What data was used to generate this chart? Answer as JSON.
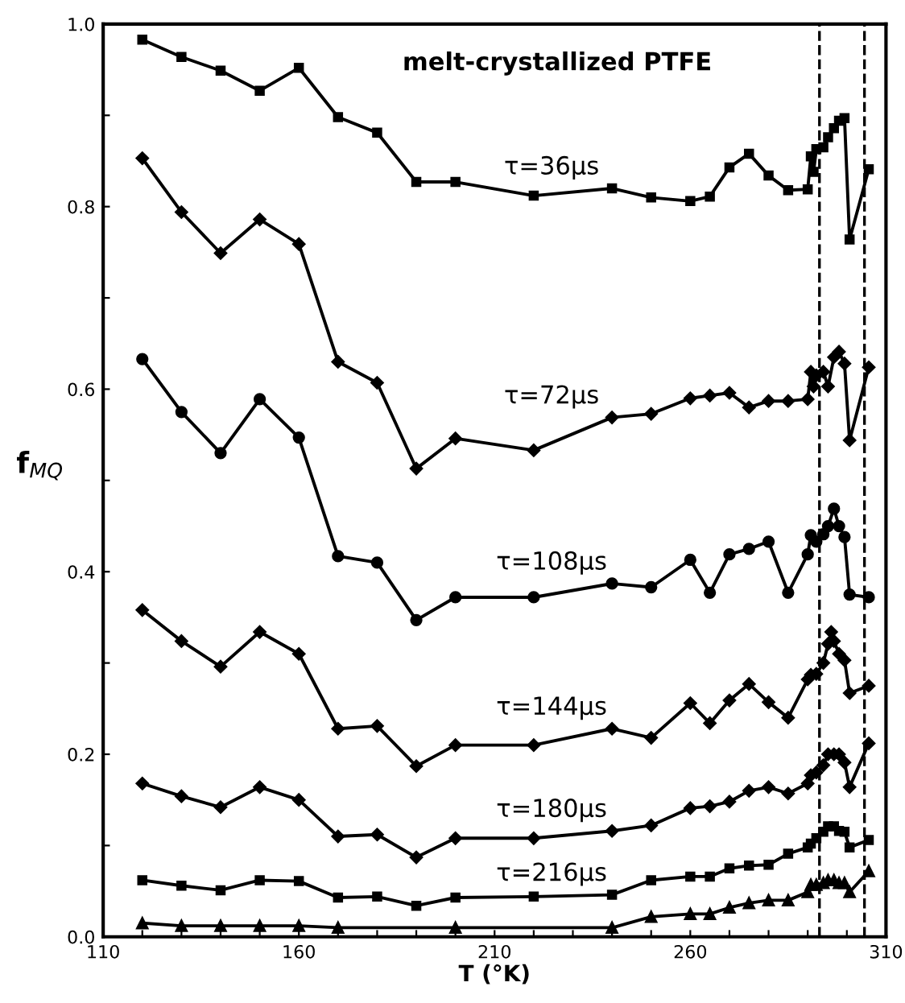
{
  "chart_data": {
    "type": "line",
    "title": "melt-crystallized PTFE",
    "xlabel": "T (°K)",
    "ylabel": "f$_{MQ}$",
    "xlim": [
      110,
      310
    ],
    "ylim": [
      0,
      1.0
    ],
    "xticks": [
      110,
      {
        "value": 120,
        "label": null
      },
      {
        "value": 130,
        "label": null
      },
      {
        "value": 140,
        "label": null
      },
      {
        "value": 150,
        "label": null
      },
      160,
      {
        "value": 170,
        "label": null
      },
      {
        "value": 180,
        "label": null
      },
      {
        "value": 190,
        "label": null
      },
      {
        "value": 200,
        "label": null
      },
      210,
      {
        "value": 220,
        "label": null
      },
      {
        "value": 230,
        "label": null
      },
      {
        "value": 240,
        "label": null
      },
      {
        "value": 250,
        "label": null
      },
      260,
      {
        "value": 270,
        "label": null
      },
      {
        "value": 280,
        "label": null
      },
      {
        "value": 290,
        "label": null
      },
      {
        "value": 300,
        "label": null
      },
      310
    ],
    "yticks": [
      {
        "value": 0,
        "label": "0.0"
      },
      {
        "value": 0.1,
        "label": null
      },
      {
        "value": 0.2,
        "label": "0.2"
      },
      {
        "value": 0.3,
        "label": null
      },
      {
        "value": 0.4,
        "label": "0.4"
      },
      {
        "value": 0.5,
        "label": null
      },
      {
        "value": 0.6,
        "label": "0.6"
      },
      {
        "value": 0.7,
        "label": null
      },
      {
        "value": 0.8,
        "label": "0.8"
      },
      {
        "value": 0.9,
        "label": null
      },
      {
        "value": 1.0,
        "label": "1.0"
      }
    ],
    "grid": false,
    "legend": false,
    "line_style": "solid",
    "series": [
      {
        "name": "τ=36μs",
        "color": "#000000",
        "marker": "square",
        "x": [
          120,
          130,
          140,
          150,
          160,
          170,
          180,
          190,
          200,
          220,
          240,
          250,
          260,
          265,
          270,
          275,
          280,
          285,
          290,
          290.8,
          291.5,
          292.2,
          294,
          295.2,
          296.7,
          298,
          299.4,
          300.7,
          305.6
        ],
        "values": [
          0.983,
          0.964,
          0.949,
          0.927,
          0.952,
          0.898,
          0.881,
          0.827,
          0.827,
          0.812,
          0.82,
          0.81,
          0.806,
          0.811,
          0.843,
          0.858,
          0.834,
          0.818,
          0.819,
          0.855,
          0.838,
          0.863,
          0.865,
          0.876,
          0.886,
          0.894,
          0.897,
          0.764,
          0.841
        ]
      },
      {
        "name": "τ=72μs",
        "color": "#000000",
        "marker": "diamond",
        "x": [
          120,
          130,
          140,
          150,
          160,
          170,
          180,
          190,
          200,
          220,
          240,
          250,
          260,
          265,
          270,
          275,
          280,
          285,
          290,
          290.8,
          291.5,
          292.2,
          294,
          295.2,
          296.7,
          298,
          299.4,
          300.7,
          305.6
        ],
        "values": [
          0.853,
          0.794,
          0.749,
          0.786,
          0.759,
          0.63,
          0.607,
          0.513,
          0.546,
          0.533,
          0.569,
          0.573,
          0.59,
          0.593,
          0.596,
          0.58,
          0.587,
          0.587,
          0.589,
          0.619,
          0.603,
          0.615,
          0.619,
          0.603,
          0.635,
          0.641,
          0.628,
          0.544,
          0.624
        ]
      },
      {
        "name": "τ=108μs",
        "color": "#000000",
        "marker": "circle",
        "x": [
          120,
          130,
          140,
          150,
          160,
          170,
          180,
          190,
          200,
          220,
          240,
          250,
          260,
          265,
          270,
          275,
          280,
          285,
          290,
          290.8,
          292.2,
          294,
          295.2,
          296.7,
          298,
          299.4,
          300.7,
          305.6
        ],
        "values": [
          0.633,
          0.575,
          0.53,
          0.589,
          0.547,
          0.417,
          0.41,
          0.347,
          0.372,
          0.372,
          0.387,
          0.383,
          0.413,
          0.377,
          0.419,
          0.425,
          0.433,
          0.377,
          0.419,
          0.44,
          0.433,
          0.441,
          0.45,
          0.469,
          0.45,
          0.438,
          0.375,
          0.372
        ]
      },
      {
        "name": "τ=144μs",
        "color": "#000000",
        "marker": "diamond",
        "x": [
          120,
          130,
          140,
          150,
          160,
          170,
          180,
          190,
          200,
          220,
          240,
          250,
          260,
          265,
          270,
          275,
          280,
          285,
          290,
          290.8,
          292.2,
          294,
          295.2,
          296,
          296.7,
          298,
          299.4,
          300.7,
          305.6
        ],
        "values": [
          0.358,
          0.324,
          0.296,
          0.334,
          0.31,
          0.228,
          0.231,
          0.187,
          0.21,
          0.21,
          0.228,
          0.218,
          0.256,
          0.234,
          0.259,
          0.277,
          0.257,
          0.24,
          0.282,
          0.287,
          0.288,
          0.3,
          0.321,
          0.334,
          0.324,
          0.31,
          0.303,
          0.267,
          0.275
        ]
      },
      {
        "name": "τ=180μs",
        "color": "#000000",
        "marker": "diamond",
        "x": [
          120,
          130,
          140,
          150,
          160,
          170,
          180,
          190,
          200,
          220,
          240,
          250,
          260,
          265,
          270,
          275,
          280,
          285,
          290,
          290.8,
          292.2,
          294,
          295.2,
          296.7,
          298,
          299.4,
          300.7,
          305.6
        ],
        "values": [
          0.168,
          0.154,
          0.142,
          0.164,
          0.15,
          0.11,
          0.112,
          0.087,
          0.108,
          0.108,
          0.116,
          0.122,
          0.141,
          0.143,
          0.148,
          0.16,
          0.164,
          0.157,
          0.168,
          0.177,
          0.18,
          0.188,
          0.2,
          0.2,
          0.2,
          0.191,
          0.164,
          0.212
        ]
      },
      {
        "name": "τ=216μs",
        "color": "#000000",
        "marker": "square",
        "x": [
          120,
          130,
          140,
          150,
          160,
          170,
          180,
          190,
          200,
          220,
          240,
          250,
          260,
          265,
          270,
          275,
          280,
          285,
          290,
          290.8,
          292.2,
          294,
          295.2,
          296.7,
          298,
          299.4,
          300.7,
          305.6
        ],
        "values": [
          0.062,
          0.056,
          0.051,
          0.062,
          0.061,
          0.043,
          0.044,
          0.034,
          0.043,
          0.044,
          0.046,
          0.062,
          0.066,
          0.066,
          0.075,
          0.078,
          0.079,
          0.091,
          0.098,
          0.102,
          0.108,
          0.115,
          0.121,
          0.121,
          0.116,
          0.115,
          0.098,
          0.106
        ]
      },
      {
        "color": "#000000",
        "marker": "triangle",
        "x": [
          120,
          130,
          140,
          150,
          160,
          170,
          200,
          240,
          250,
          260,
          265,
          270,
          275,
          280,
          285,
          290,
          290.8,
          292.2,
          294,
          295.2,
          296.7,
          298,
          299.4,
          300.7,
          305.6
        ],
        "values": [
          0.015,
          0.012,
          0.012,
          0.012,
          0.012,
          0.01,
          0.01,
          0.01,
          0.022,
          0.025,
          0.025,
          0.032,
          0.037,
          0.04,
          0.04,
          0.049,
          0.057,
          0.057,
          0.059,
          0.062,
          0.062,
          0.059,
          0.059,
          0.049,
          0.072
        ]
      }
    ],
    "ref_lines": [
      {
        "axis": "x",
        "value": 293,
        "color": "#000000",
        "line_style": "dashed"
      },
      {
        "axis": "x",
        "value": 304.5,
        "color": "#000000",
        "line_style": "dashed"
      }
    ]
  }
}
